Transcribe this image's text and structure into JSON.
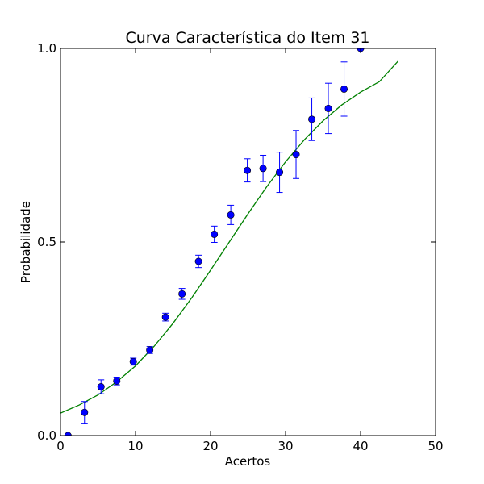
{
  "chart_data": {
    "type": "scatter",
    "title": "Curva Característica do Item 31",
    "xlabel": "Acertos",
    "ylabel": "Probabilidade",
    "xlim": [
      0,
      50
    ],
    "ylim": [
      0.0,
      1.0
    ],
    "xticks": [
      0,
      10,
      20,
      30,
      40,
      50
    ],
    "xtick_labels": [
      "0",
      "10",
      "20",
      "30",
      "40",
      "50"
    ],
    "yticks": [
      0.0,
      0.5,
      1.0
    ],
    "ytick_labels": [
      "0.0",
      "0.5",
      "1.0"
    ],
    "grid": false,
    "legend": "none",
    "colors": {
      "points": "#0000ff",
      "errorbars": "#0000ff",
      "curve": "#008000"
    },
    "series": [
      {
        "kind": "points-with-errorbars",
        "points": [
          {
            "x": 1.0,
            "y": 0.0,
            "err": 0.0
          },
          {
            "x": 3.2,
            "y": 0.06,
            "err": 0.028
          },
          {
            "x": 5.4,
            "y": 0.126,
            "err": 0.018
          },
          {
            "x": 7.5,
            "y": 0.141,
            "err": 0.01
          },
          {
            "x": 9.7,
            "y": 0.191,
            "err": 0.009
          },
          {
            "x": 11.9,
            "y": 0.221,
            "err": 0.009
          },
          {
            "x": 14.0,
            "y": 0.306,
            "err": 0.01
          },
          {
            "x": 16.2,
            "y": 0.366,
            "err": 0.014
          },
          {
            "x": 18.4,
            "y": 0.45,
            "err": 0.016
          },
          {
            "x": 20.5,
            "y": 0.52,
            "err": 0.021
          },
          {
            "x": 22.7,
            "y": 0.57,
            "err": 0.025
          },
          {
            "x": 24.9,
            "y": 0.685,
            "err": 0.03
          },
          {
            "x": 27.0,
            "y": 0.69,
            "err": 0.034
          },
          {
            "x": 29.2,
            "y": 0.68,
            "err": 0.052
          },
          {
            "x": 31.4,
            "y": 0.726,
            "err": 0.062
          },
          {
            "x": 33.5,
            "y": 0.817,
            "err": 0.055
          },
          {
            "x": 35.7,
            "y": 0.845,
            "err": 0.065
          },
          {
            "x": 37.8,
            "y": 0.895,
            "err": 0.07
          },
          {
            "x": 40.0,
            "y": 1.0,
            "err": 0.0
          }
        ]
      },
      {
        "kind": "curve",
        "x": [
          0,
          2.5,
          5,
          7.5,
          10,
          12.5,
          15,
          17.5,
          20,
          22.5,
          25,
          27.5,
          30,
          32.5,
          35,
          37.5,
          40,
          42.5,
          45
        ],
        "y": [
          0.058,
          0.079,
          0.105,
          0.139,
          0.18,
          0.231,
          0.29,
          0.356,
          0.427,
          0.5,
          0.573,
          0.643,
          0.707,
          0.764,
          0.813,
          0.854,
          0.887,
          0.914,
          0.967
        ]
      }
    ]
  }
}
